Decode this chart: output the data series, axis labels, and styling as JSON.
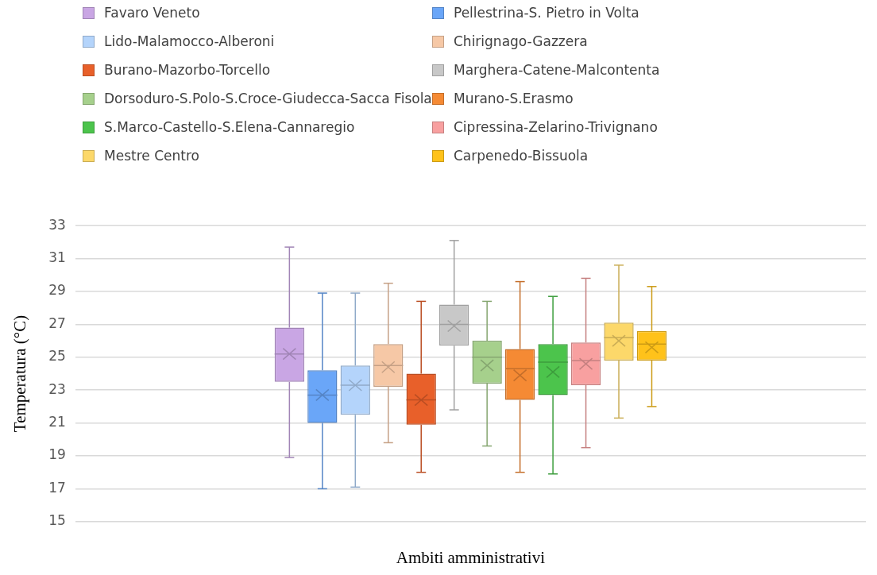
{
  "chart_data": {
    "type": "box",
    "xlabel": "Ambiti amministrativi",
    "ylabel": "Temperatura (°C)",
    "categories": [
      null
    ],
    "ylim": [
      15,
      33
    ],
    "yticks": [
      15,
      17,
      19,
      21,
      23,
      25,
      27,
      29,
      31,
      33
    ],
    "grid": "y",
    "legend": "top",
    "tick_labels": "y",
    "series": [
      {
        "name": "Favaro Veneto",
        "color": "#c9a6e4",
        "boxes": [
          {
            "low": 18.9,
            "q1": 23.5,
            "median": 25.2,
            "q3": 26.8,
            "high": 31.7,
            "mean": 25.2
          }
        ]
      },
      {
        "name": "Pellestrina-S. Pietro in Volta",
        "color": "#6aa6f8",
        "boxes": [
          {
            "low": 17.0,
            "q1": 21.0,
            "median": 22.7,
            "q3": 24.2,
            "high": 28.9,
            "mean": 22.7
          }
        ]
      },
      {
        "name": "Lido-Malamocco-Alberoni",
        "color": "#b4d4fb",
        "boxes": [
          {
            "low": 17.1,
            "q1": 21.5,
            "median": 23.3,
            "q3": 24.5,
            "high": 28.9,
            "mean": 23.3
          }
        ]
      },
      {
        "name": "Chirignago-Gazzera",
        "color": "#f6c8a6",
        "boxes": [
          {
            "low": 19.8,
            "q1": 23.2,
            "median": 24.5,
            "q3": 25.8,
            "high": 29.5,
            "mean": 24.4
          }
        ]
      },
      {
        "name": "Burano-Mazorbo-Torcello",
        "color": "#e8602a",
        "boxes": [
          {
            "low": 18.0,
            "q1": 20.9,
            "median": 22.4,
            "q3": 24.0,
            "high": 28.4,
            "mean": 22.4
          }
        ]
      },
      {
        "name": "Marghera-Catene-Malcontenta",
        "color": "#c8c8c8",
        "boxes": [
          {
            "low": 21.8,
            "q1": 25.7,
            "median": 27.0,
            "q3": 28.2,
            "high": 32.1,
            "mean": 26.9
          }
        ]
      },
      {
        "name": "Dorsoduro-S.Polo-S.Croce-Giudecca-Sacca Fisola",
        "color": "#a6d08c",
        "boxes": [
          {
            "low": 19.6,
            "q1": 23.4,
            "median": 25.0,
            "q3": 26.0,
            "high": 28.4,
            "mean": 24.5
          }
        ]
      },
      {
        "name": "Murano-S.Erasmo",
        "color": "#f58a34",
        "boxes": [
          {
            "low": 18.0,
            "q1": 22.4,
            "median": 24.3,
            "q3": 25.5,
            "high": 29.6,
            "mean": 23.9
          }
        ]
      },
      {
        "name": "S.Marco-Castello-S.Elena-Cannaregio",
        "color": "#4cc44c",
        "boxes": [
          {
            "low": 17.9,
            "q1": 22.7,
            "median": 24.7,
            "q3": 25.8,
            "high": 28.7,
            "mean": 24.1
          }
        ]
      },
      {
        "name": "Cipressina-Zelarino-Trivignano",
        "color": "#f8a0a0",
        "boxes": [
          {
            "low": 19.5,
            "q1": 23.3,
            "median": 24.8,
            "q3": 25.9,
            "high": 29.8,
            "mean": 24.6
          }
        ]
      },
      {
        "name": "Mestre Centro",
        "color": "#fcd86a",
        "boxes": [
          {
            "low": 21.3,
            "q1": 24.8,
            "median": 26.2,
            "q3": 27.1,
            "high": 30.6,
            "mean": 26.0
          }
        ]
      },
      {
        "name": "Carpenedo-Bissuola",
        "color": "#ffc21a",
        "boxes": [
          {
            "low": 22.0,
            "q1": 24.8,
            "median": 25.8,
            "q3": 26.6,
            "high": 29.3,
            "mean": 25.6
          }
        ]
      }
    ]
  }
}
